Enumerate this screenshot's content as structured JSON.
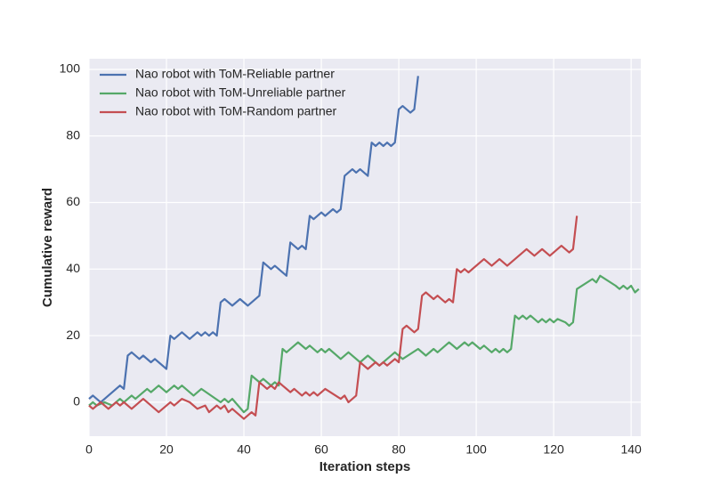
{
  "chart_data": {
    "type": "line",
    "xlabel": "Iteration steps",
    "ylabel": "Cumulative reward",
    "xlim": [
      0,
      142.5
    ],
    "ylim": [
      -10.2,
      103.2
    ],
    "xticks": [
      0,
      20,
      40,
      60,
      80,
      100,
      120,
      140
    ],
    "yticks": [
      0,
      20,
      40,
      60,
      80,
      100
    ],
    "grid": true,
    "legend": "upper left",
    "series": [
      {
        "name": "Nao robot with ToM-Reliable partner",
        "color": "#4c72b0",
        "x": [
          0,
          1,
          3,
          8,
          9,
          10,
          11,
          13,
          14,
          16,
          17,
          20,
          21,
          22,
          24,
          26,
          28,
          29,
          30,
          31,
          32,
          33,
          34,
          35,
          37,
          39,
          41,
          44,
          45,
          47,
          48,
          51,
          52,
          54,
          55,
          56,
          57,
          58,
          60,
          61,
          63,
          64,
          65,
          66,
          68,
          69,
          70,
          72,
          73,
          74,
          75,
          76,
          77,
          78,
          79,
          80,
          81,
          83,
          84,
          85
        ],
        "values": [
          1,
          2,
          0,
          5,
          4,
          14,
          15,
          13,
          14,
          12,
          13,
          10,
          20,
          19,
          21,
          19,
          21,
          20,
          21,
          20,
          21,
          20,
          30,
          31,
          29,
          31,
          29,
          32,
          42,
          40,
          41,
          38,
          48,
          46,
          47,
          46,
          56,
          55,
          57,
          56,
          58,
          57,
          58,
          68,
          70,
          69,
          70,
          68,
          78,
          77,
          78,
          77,
          78,
          77,
          78,
          88,
          89,
          87,
          88,
          98
        ]
      },
      {
        "name": "Nao robot with ToM-Unreliable partner",
        "color": "#55a868",
        "x": [
          0,
          1,
          2,
          4,
          6,
          8,
          9,
          11,
          12,
          15,
          16,
          18,
          20,
          22,
          23,
          24,
          27,
          29,
          34,
          35,
          36,
          37,
          40,
          41,
          42,
          44,
          45,
          47,
          48,
          49,
          50,
          51,
          54,
          56,
          57,
          59,
          60,
          61,
          62,
          65,
          67,
          70,
          72,
          75,
          79,
          81,
          85,
          87,
          89,
          90,
          93,
          95,
          97,
          98,
          99,
          101,
          102,
          104,
          105,
          106,
          107,
          108,
          109,
          110,
          111,
          112,
          113,
          114,
          116,
          117,
          118,
          119,
          120,
          121,
          123,
          124,
          125,
          126,
          130,
          131,
          132,
          136,
          137,
          138,
          139,
          140,
          141,
          142
        ],
        "values": [
          -1,
          0,
          -1,
          0,
          -1,
          1,
          0,
          2,
          1,
          4,
          3,
          5,
          3,
          5,
          4,
          5,
          2,
          4,
          0,
          1,
          0,
          1,
          -3,
          -2,
          8,
          6,
          7,
          5,
          6,
          5,
          16,
          15,
          18,
          16,
          17,
          15,
          16,
          15,
          16,
          13,
          15,
          12,
          14,
          11,
          15,
          13,
          16,
          14,
          16,
          15,
          18,
          16,
          18,
          17,
          18,
          16,
          17,
          15,
          16,
          15,
          16,
          15,
          16,
          26,
          25,
          26,
          25,
          26,
          24,
          25,
          24,
          25,
          24,
          25,
          24,
          23,
          24,
          34,
          37,
          36,
          38,
          35,
          34,
          35,
          34,
          35,
          33,
          34
        ]
      },
      {
        "name": "Nao robot with ToM-Random partner",
        "color": "#c44e52",
        "x": [
          0,
          1,
          3,
          5,
          7,
          8,
          9,
          11,
          14,
          18,
          21,
          22,
          24,
          26,
          28,
          30,
          31,
          33,
          34,
          35,
          36,
          37,
          40,
          42,
          43,
          44,
          45,
          46,
          47,
          48,
          49,
          50,
          51,
          52,
          53,
          55,
          56,
          57,
          58,
          59,
          61,
          65,
          66,
          67,
          69,
          70,
          72,
          74,
          75,
          76,
          77,
          79,
          80,
          81,
          82,
          84,
          85,
          86,
          87,
          89,
          90,
          92,
          93,
          94,
          95,
          96,
          97,
          98,
          102,
          104,
          106,
          108,
          113,
          115,
          117,
          119,
          122,
          124,
          125,
          126
        ],
        "values": [
          -1,
          -2,
          0,
          -2,
          0,
          -1,
          0,
          -2,
          1,
          -3,
          0,
          -1,
          1,
          0,
          -2,
          -1,
          -3,
          -1,
          -2,
          -1,
          -3,
          -2,
          -5,
          -3,
          -4,
          6,
          5,
          4,
          5,
          4,
          6,
          5,
          4,
          3,
          4,
          2,
          3,
          2,
          3,
          2,
          4,
          1,
          2,
          0,
          2,
          12,
          10,
          12,
          11,
          12,
          11,
          13,
          12,
          22,
          23,
          21,
          22,
          32,
          33,
          31,
          32,
          30,
          31,
          30,
          40,
          39,
          40,
          39,
          43,
          41,
          43,
          41,
          46,
          44,
          46,
          44,
          47,
          45,
          46,
          56
        ]
      }
    ]
  }
}
